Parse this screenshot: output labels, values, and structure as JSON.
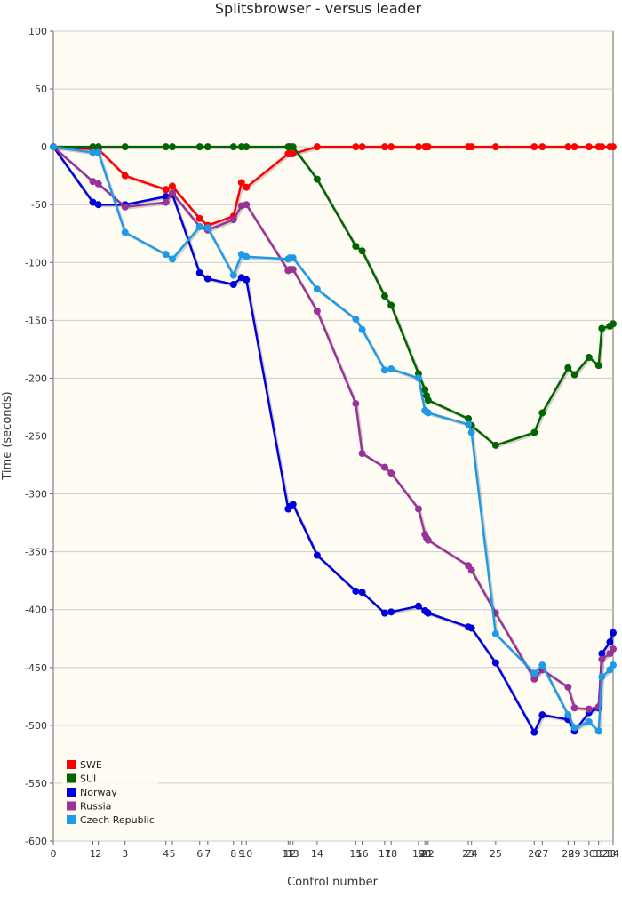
{
  "chart_data": {
    "type": "line",
    "title": "Splitsbrowser - versus leader",
    "xlabel": "Control number",
    "ylabel": "Time (seconds)",
    "ylim": [
      -600,
      100
    ],
    "yticks": [
      100,
      50,
      0,
      -50,
      -100,
      -150,
      -200,
      -250,
      -300,
      -350,
      -400,
      -450,
      -500,
      -550,
      -600
    ],
    "xticks": [
      {
        "label": "0",
        "x": 0
      },
      {
        "label": "1",
        "x": 1.23
      },
      {
        "label": "2",
        "x": 1.4
      },
      {
        "label": "3",
        "x": 2.23
      },
      {
        "label": "4",
        "x": 3.5
      },
      {
        "label": "5",
        "x": 3.7
      },
      {
        "label": "6",
        "x": 4.55
      },
      {
        "label": "7",
        "x": 4.8
      },
      {
        "label": "8",
        "x": 5.6
      },
      {
        "label": "9",
        "x": 5.85
      },
      {
        "label": "10",
        "x": 6.0
      },
      {
        "label": "11",
        "x": 7.3
      },
      {
        "label": "12",
        "x": 7.35
      },
      {
        "label": "13",
        "x": 7.45
      },
      {
        "label": "14",
        "x": 8.2
      },
      {
        "label": "15",
        "x": 9.4
      },
      {
        "label": "16",
        "x": 9.6
      },
      {
        "label": "17",
        "x": 10.3
      },
      {
        "label": "18",
        "x": 10.5
      },
      {
        "label": "19",
        "x": 11.35
      },
      {
        "label": "20",
        "x": 11.55
      },
      {
        "label": "21",
        "x": 11.6
      },
      {
        "label": "22",
        "x": 11.65
      },
      {
        "label": "23",
        "x": 12.9
      },
      {
        "label": "24",
        "x": 13.0
      },
      {
        "label": "25",
        "x": 13.75
      },
      {
        "label": "26",
        "x": 14.95
      },
      {
        "label": "27",
        "x": 15.2
      },
      {
        "label": "28",
        "x": 16.0
      },
      {
        "label": "29",
        "x": 16.2
      },
      {
        "label": "30",
        "x": 16.65
      },
      {
        "label": "31",
        "x": 16.95
      },
      {
        "label": "32",
        "x": 17.05
      },
      {
        "label": "33",
        "x": 17.3
      },
      {
        "label": "34",
        "x": 17.4
      }
    ],
    "xlim": [
      0,
      17.4
    ],
    "grid": "horizontal",
    "legend_position": "bottom-left",
    "series": [
      {
        "name": "SWE",
        "color": "#ff0000",
        "values": [
          0,
          -2,
          -2,
          -25,
          -37,
          -34,
          -62,
          -68,
          -60,
          -31,
          -35,
          -6,
          -6,
          -6,
          0,
          0,
          0,
          0,
          0,
          0,
          0,
          0,
          0,
          0,
          0,
          0,
          0,
          0,
          0,
          0,
          0,
          0,
          0,
          0,
          0
        ]
      },
      {
        "name": "SUI",
        "color": "#006400",
        "values": [
          0,
          0,
          0,
          0,
          0,
          0,
          0,
          0,
          0,
          0,
          0,
          0,
          0,
          0,
          -28,
          -86,
          -90,
          -129,
          -137,
          -196,
          -210,
          -215,
          -219,
          -235,
          -241,
          -258,
          -247,
          -230,
          -191,
          -197,
          -182,
          -189,
          -157,
          -155,
          -153
        ]
      },
      {
        "name": "Norway",
        "color": "#0000dd",
        "values": [
          0,
          -48,
          -50,
          -50,
          -43,
          -41,
          -109,
          -114,
          -119,
          -113,
          -115,
          -313,
          -311,
          -309,
          -353,
          -384,
          -385,
          -403,
          -402,
          -397,
          -401,
          -402,
          -403,
          -415,
          -416,
          -446,
          -506,
          -491,
          -495,
          -505,
          -489,
          -485,
          -438,
          -428,
          -420
        ]
      },
      {
        "name": "Russia",
        "color": "#993399",
        "values": [
          0,
          -30,
          -32,
          -52,
          -48,
          -40,
          -69,
          -72,
          -63,
          -51,
          -50,
          -107,
          -106,
          -106,
          -142,
          -222,
          -265,
          -277,
          -282,
          -313,
          -335,
          -338,
          -340,
          -362,
          -366,
          -403,
          -460,
          -452,
          -467,
          -485,
          -486,
          -484,
          -443,
          -438,
          -434
        ]
      },
      {
        "name": "Czech Republic",
        "color": "#1e9ae8",
        "values": [
          0,
          -5,
          -5,
          -74,
          -93,
          -97,
          -69,
          -70,
          -111,
          -93,
          -95,
          -97,
          -96,
          -96,
          -123,
          -149,
          -158,
          -193,
          -192,
          -200,
          -228,
          -229,
          -230,
          -240,
          -247,
          -421,
          -455,
          -448,
          -491,
          -502,
          -497,
          -505,
          -458,
          -452,
          -448
        ]
      }
    ]
  }
}
